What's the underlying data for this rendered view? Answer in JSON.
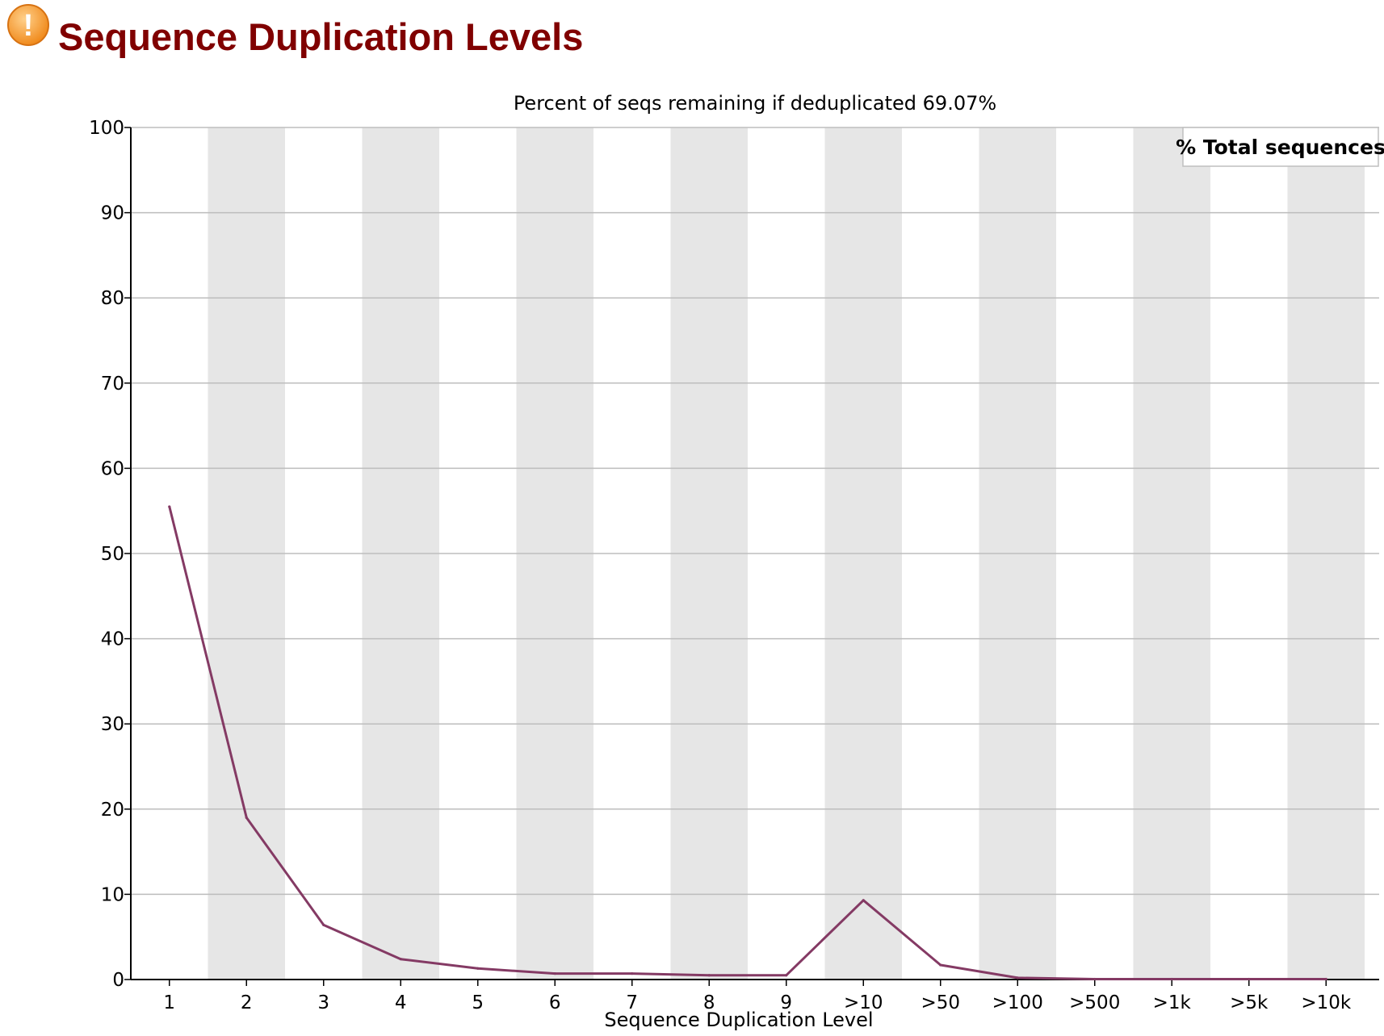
{
  "header": {
    "title": "Sequence Duplication Levels",
    "icon": "warning-icon",
    "icon_glyph": "!",
    "icon_color": "#F7A23B"
  },
  "chart_data": {
    "type": "line",
    "title": "Percent of seqs remaining if deduplicated 69.07%",
    "xlabel": "Sequence Duplication Level",
    "ylabel": "",
    "ylim": [
      0,
      100
    ],
    "yticks": [
      0,
      10,
      20,
      30,
      40,
      50,
      60,
      70,
      80,
      90,
      100
    ],
    "categories": [
      "1",
      "2",
      "3",
      "4",
      "5",
      "6",
      "7",
      "8",
      "9",
      ">10",
      ">50",
      ">100",
      ">500",
      ">1k",
      ">5k",
      ">10k"
    ],
    "series": [
      {
        "name": "% Total sequences",
        "color": "#843A64",
        "values": [
          55.5,
          19.0,
          6.4,
          2.4,
          1.3,
          0.7,
          0.7,
          0.5,
          0.5,
          9.3,
          1.7,
          0.2,
          0.05,
          0.05,
          0.05,
          0.05
        ]
      }
    ],
    "grid": true,
    "alternating_column_shading": true,
    "shade_color": "#E6E6E6",
    "legend": "top-right"
  }
}
